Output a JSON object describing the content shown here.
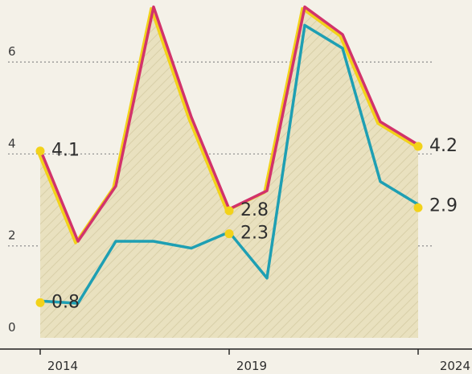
{
  "chart_data": {
    "type": "line",
    "x": [
      2014,
      2015,
      2016,
      2017,
      2018,
      2019,
      2020,
      2021,
      2022,
      2023,
      2024
    ],
    "x_tick_labels": [
      "2014",
      "2019",
      "2024"
    ],
    "x_ticks": [
      2014,
      2019,
      2024
    ],
    "ylim": [
      0,
      7
    ],
    "y_ticks": [
      0,
      2,
      4,
      6
    ],
    "y_tick_labels": [
      "0",
      "2",
      "4",
      "6"
    ],
    "grid": true,
    "series": [
      {
        "color": "#d2336b",
        "fill": "#e9e1bf",
        "values": [
          4.1,
          2.1,
          3.3,
          7.2,
          4.8,
          2.8,
          3.2,
          7.2,
          6.6,
          4.7,
          4.2
        ],
        "start_label": "4.1",
        "end_label": "4.2",
        "mid_label": "2.8"
      },
      {
        "color": "#1e9fb3",
        "values": [
          0.8,
          0.75,
          2.1,
          2.1,
          1.95,
          2.3,
          1.3,
          6.8,
          6.3,
          3.4,
          2.9
        ],
        "start_label": "0.8",
        "end_label": "2.9",
        "mid_label": "2.3"
      }
    ],
    "marker_color": "#f2d21a"
  }
}
